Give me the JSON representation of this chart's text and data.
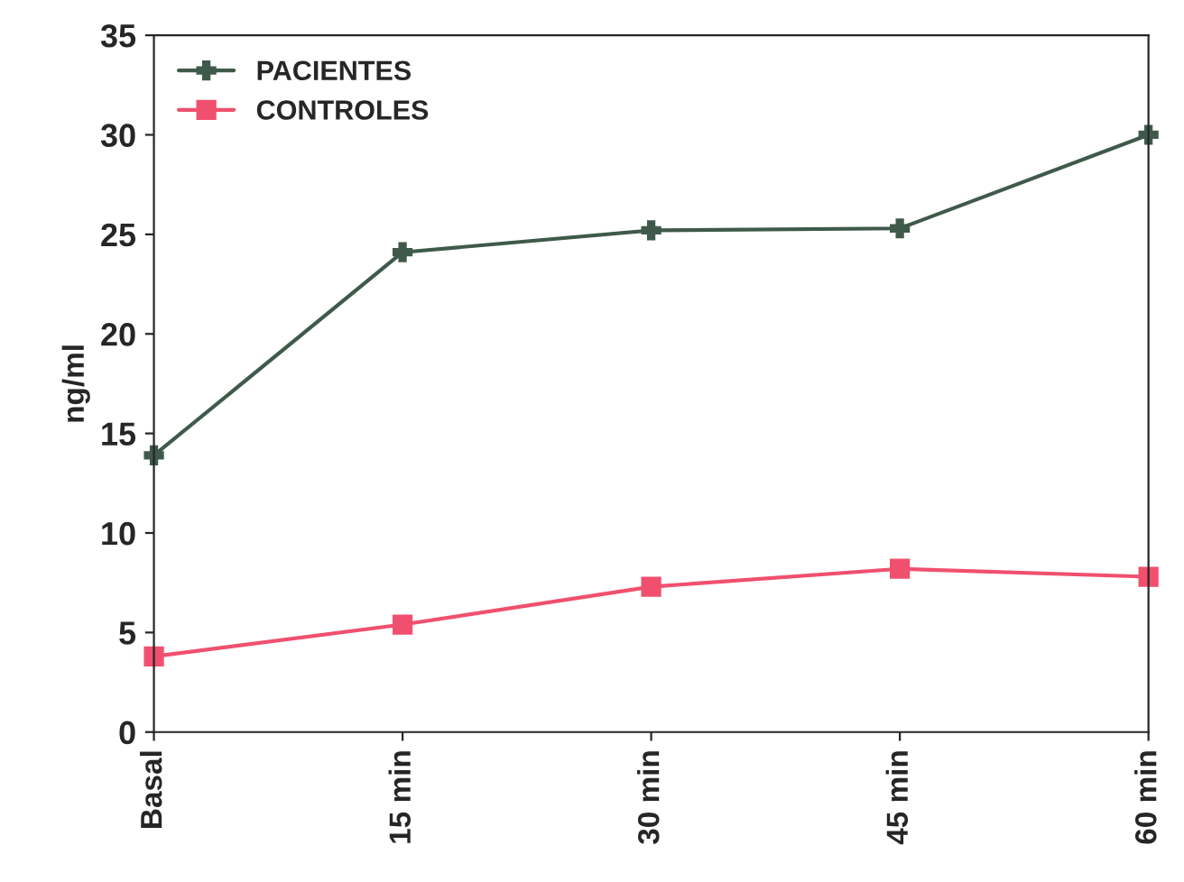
{
  "chart_data": {
    "type": "line",
    "ylabel": "ng/ml",
    "categories": [
      "Basal",
      "15 min",
      "30 min",
      "45 min",
      "60 min"
    ],
    "series": [
      {
        "name": "PACIENTES",
        "color": "#3f5a4a",
        "marker": "cross",
        "values": [
          13.9,
          24.1,
          25.2,
          25.3,
          30.0
        ]
      },
      {
        "name": "CONTROLES",
        "color": "#f0506e",
        "marker": "square",
        "values": [
          3.8,
          5.4,
          7.3,
          8.2,
          7.8
        ]
      }
    ],
    "ylim": [
      0,
      35
    ],
    "yticks": [
      0,
      5,
      10,
      15,
      20,
      25,
      30,
      35
    ],
    "grid": false,
    "legend": "top left"
  }
}
